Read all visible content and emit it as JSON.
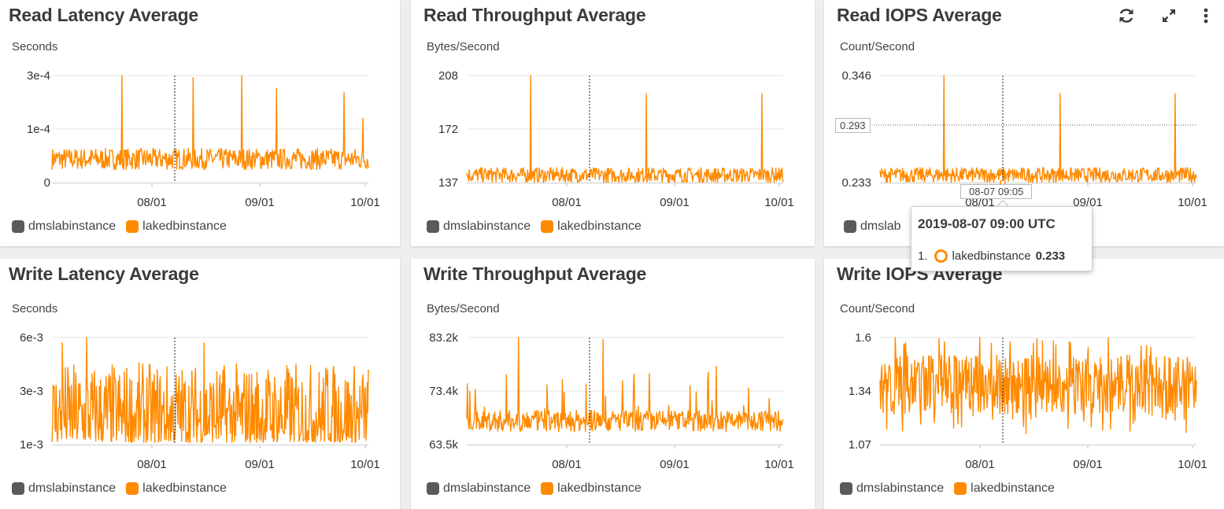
{
  "colors": {
    "dmslabinstance": "#5a5a5a",
    "lakedbinstance": "#ff8a00"
  },
  "icons": [
    "refresh-icon",
    "expand-icon",
    "more-vertical-icon"
  ],
  "legend": {
    "series1": "dmslabinstance",
    "series2": "lakedbinstance",
    "series1_truncated": "dmslab"
  },
  "widgets": [
    {
      "title": "Read Latency Average",
      "unit": "Seconds",
      "y_ticks": [
        "3e-4",
        "1e-4",
        "0"
      ],
      "x_ticks": [
        "08/01",
        "09/01",
        "10/01"
      ]
    },
    {
      "title": "Read Throughput Average",
      "unit": "Bytes/Second",
      "y_ticks": [
        "208",
        "172",
        "137"
      ],
      "x_ticks": [
        "08/01",
        "09/01",
        "10/01"
      ]
    },
    {
      "title": "Read IOPS Average",
      "unit": "Count/Second",
      "y_ticks": [
        "0.346",
        "0.233"
      ],
      "x_ticks": [
        "08/01",
        "09/01",
        "10/01"
      ]
    },
    {
      "title": "Write Latency Average",
      "unit": "Seconds",
      "y_ticks": [
        "6e-3",
        "3e-3",
        "1e-3"
      ],
      "x_ticks": [
        "08/01",
        "09/01",
        "10/01"
      ]
    },
    {
      "title": "Write Throughput Average",
      "unit": "Bytes/Second",
      "y_ticks": [
        "83.2k",
        "73.4k",
        "63.5k"
      ],
      "x_ticks": [
        "08/01",
        "09/01",
        "10/01"
      ]
    },
    {
      "title": "Write IOPS Average",
      "unit": "Count/Second",
      "y_ticks": [
        "1.6",
        "1.34",
        "1.07"
      ],
      "x_ticks": [
        "08/01",
        "09/01",
        "10/01"
      ]
    }
  ],
  "hover": {
    "y_value_label": "0.293",
    "x_time_label": "08-07 09:05",
    "tooltip_title": "2019-08-07 09:00 UTC",
    "tooltip_index": "1.",
    "tooltip_series": "lakedbinstance",
    "tooltip_value": "0.233"
  }
}
